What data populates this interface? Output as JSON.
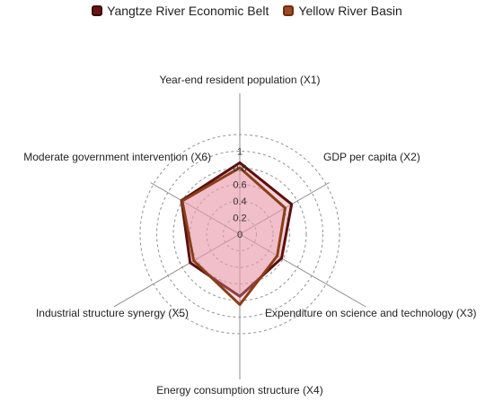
{
  "chart_data": {
    "type": "radar",
    "title": "",
    "axes": [
      "Year-end resident population (X1)",
      "GDP per capita (X2)",
      "Expenditure on science and technology (X3)",
      "Energy consumption structure (X4)",
      "Industrial structure synergy (X5)",
      "Moderate government intervention (X6)"
    ],
    "ticks": [
      "0",
      "0.2",
      "0.4",
      "0.6",
      "0.8",
      "1"
    ],
    "range": [
      0,
      1
    ],
    "grid": true,
    "legend_position": "top",
    "series": [
      {
        "name": "Yangtze River Economic Belt",
        "values": [
          0.86,
          0.72,
          0.58,
          0.75,
          0.69,
          0.81
        ],
        "color": "#5c0f0f",
        "fill": "#e79aa6"
      },
      {
        "name": "Yellow River Basin",
        "values": [
          0.8,
          0.63,
          0.52,
          0.85,
          0.64,
          0.8
        ],
        "color": "#8a3e17",
        "fill": "#ec9db0"
      }
    ]
  }
}
